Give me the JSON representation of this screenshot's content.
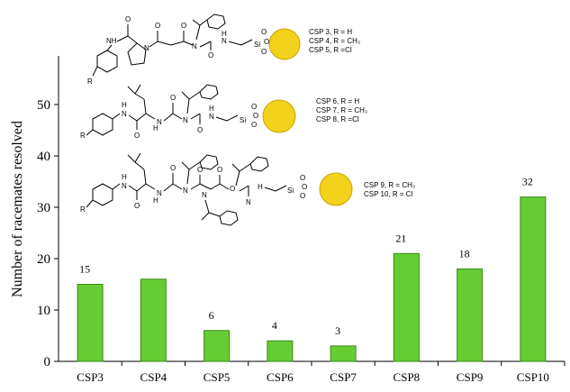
{
  "chart_data": {
    "type": "bar",
    "categories": [
      "CSP3",
      "CSP4",
      "CSP5",
      "CSP6",
      "CSP7",
      "CSP8",
      "CSP9",
      "CSP10"
    ],
    "values": [
      15,
      16,
      6,
      4,
      3,
      21,
      18,
      32
    ],
    "data_labels": [
      "15",
      "",
      "6",
      "4",
      "3",
      "21",
      "18",
      "32"
    ],
    "ylabel": "Number of racemates resolved",
    "xlabel": "",
    "ylim": [
      0,
      57
    ],
    "yticks": [
      0,
      10,
      20,
      30,
      40,
      50
    ],
    "bar_color": "#66cc33",
    "bar_edge_color": "#3a8a1a",
    "grid": false,
    "legend": "none"
  },
  "structures": [
    {
      "labels": [
        "CSP 3, R = H",
        "CSP 4, R = CH₃",
        "CSP 5, R =Cl"
      ],
      "atoms": [
        "NH",
        "O",
        "N",
        "O",
        "R",
        "O",
        "N",
        "N",
        "O",
        "H",
        "Si",
        "O",
        "O",
        "O"
      ]
    },
    {
      "labels": [
        "CSP 6, R = H",
        "CSP 7, R = CH₃",
        "CSP 8, R =Cl"
      ],
      "atoms": [
        "H",
        "N",
        "R",
        "O",
        "H",
        "N",
        "O",
        "N",
        "O",
        "N",
        "H",
        "Si",
        "O",
        "O",
        "O"
      ]
    },
    {
      "labels": [
        "CSP 9, R = CH₃",
        "CSP 10, R = Cl"
      ],
      "atoms": [
        "H",
        "N",
        "R",
        "O",
        "H",
        "N",
        "O",
        "N",
        "O",
        "O",
        "N",
        "O",
        "N",
        "H",
        "Si",
        "O",
        "O",
        "O"
      ]
    }
  ],
  "colors": {
    "silica": "#f2d21a",
    "silica_edge": "#c9a400"
  }
}
